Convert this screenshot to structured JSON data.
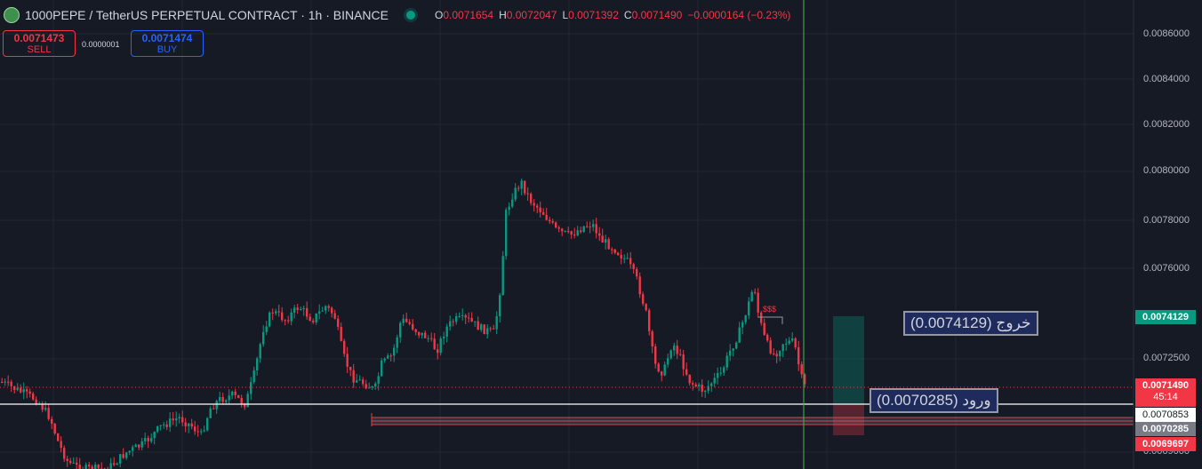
{
  "header": {
    "title": "1000PEPE / TetherUS PERPETUAL CONTRACT · 1h · BINANCE",
    "ohlc": [
      {
        "k": "O",
        "v": "0.0071654"
      },
      {
        "k": "H",
        "v": "0.0072047"
      },
      {
        "k": "L",
        "v": "0.0071392"
      },
      {
        "k": "C",
        "v": "0.0071490"
      },
      {
        "k": "",
        "v": "−0.0000164 (−0.23%)"
      }
    ]
  },
  "trade": {
    "sell_price": "0.0071473",
    "sell_label": "SELL",
    "spread": "0.0000001",
    "buy_price": "0.0071474",
    "buy_label": "BUY"
  },
  "axis": {
    "labels": [
      "0.0086000",
      "0.0084000",
      "0.0082000",
      "0.0080000",
      "0.0078000",
      "0.0076000",
      "0.0072500",
      "0.0069000"
    ]
  },
  "price_tags": {
    "exit": "0.0074129",
    "current": "0.0071490",
    "countdown": "45:14",
    "white_line": "0.0070853",
    "entry": "0.0070285",
    "low": "0.0069697"
  },
  "annotations": {
    "exit": "خروج (0.0074129)",
    "entry": "ورود (0.0070285)",
    "dollars": "$$$"
  },
  "colors": {
    "up": "#089981",
    "down": "#f23645",
    "bg": "#161a25",
    "grid": "#232632"
  }
}
